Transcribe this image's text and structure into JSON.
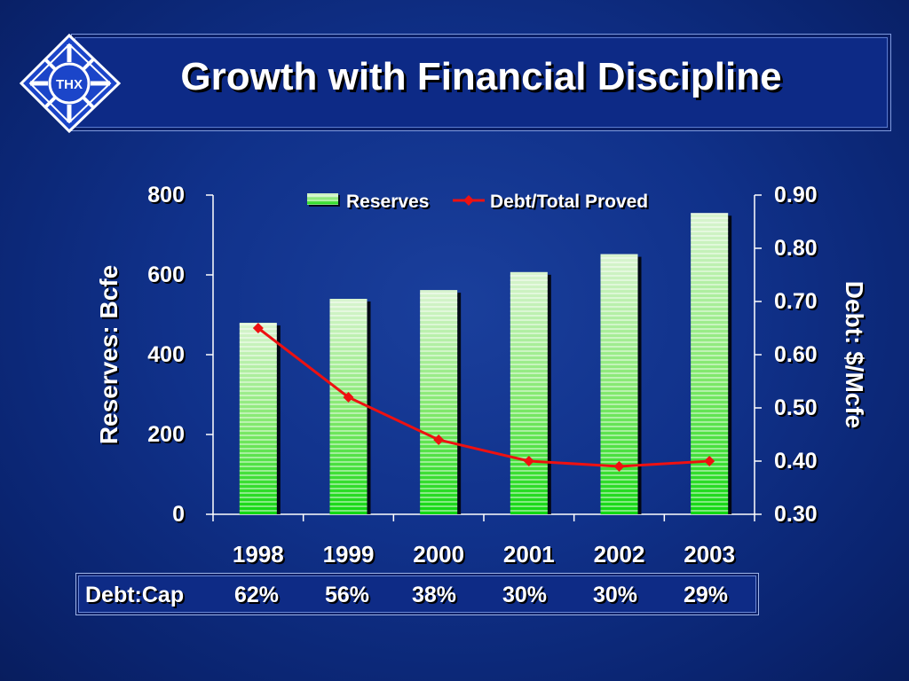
{
  "title": "Growth with Financial Discipline",
  "logo": {
    "text": "THX"
  },
  "chart_data": {
    "type": "bar",
    "categories": [
      "1998",
      "1999",
      "2000",
      "2001",
      "2002",
      "2003"
    ],
    "series": [
      {
        "name": "Reserves",
        "type": "bar",
        "axis": "left",
        "values": [
          480,
          540,
          562,
          607,
          652,
          755
        ]
      },
      {
        "name": "Debt/Total Proved",
        "type": "line",
        "axis": "right",
        "values": [
          0.65,
          0.52,
          0.44,
          0.4,
          0.39,
          0.4
        ]
      }
    ],
    "ylabel": "Reserves: Bcfe",
    "ylabel_right": "Debt: $/Mcfe",
    "ylim": [
      0,
      800
    ],
    "ylim_right": [
      0.3,
      0.9
    ],
    "yticks": [
      "0",
      "200",
      "400",
      "600",
      "800"
    ],
    "yticks_right": [
      "0.30",
      "0.40",
      "0.50",
      "0.60",
      "0.70",
      "0.80",
      "0.90"
    ],
    "legend_position": "top",
    "grid": false,
    "colors": {
      "bar": "#22dd22",
      "line": "#ee1111"
    }
  },
  "debt_cap": {
    "label": "Debt:Cap",
    "values": [
      "62%",
      "56%",
      "38%",
      "30%",
      "30%",
      "29%"
    ]
  }
}
